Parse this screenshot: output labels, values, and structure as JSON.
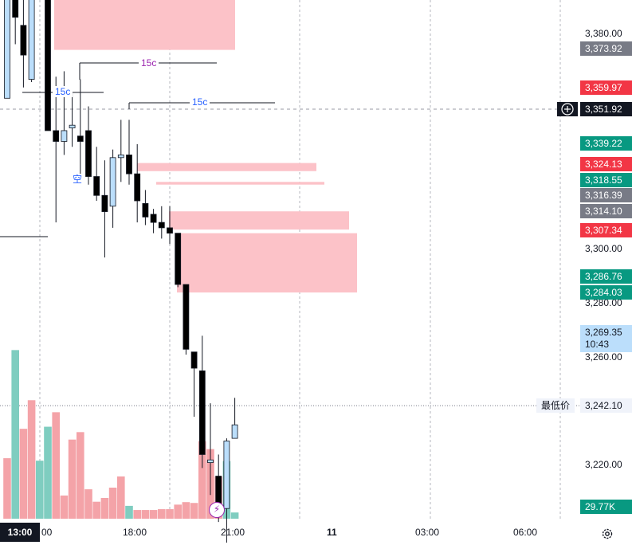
{
  "axis": {
    "ticks": [
      "3,380.00",
      "3,300.00",
      "3,280.00",
      "3,260.00",
      "3,220.00"
    ],
    "time_ticks": [
      "00",
      "18:00",
      "21:00",
      "11",
      "03:00",
      "06:00"
    ],
    "current_time": "13:00"
  },
  "price_labels": [
    {
      "text": "3,373.92",
      "color": "#787b86"
    },
    {
      "text": "3,359.97",
      "color": "#f23645"
    },
    {
      "text": "3,351.92",
      "color": "#131722"
    },
    {
      "text": "3,339.22",
      "color": "#089981"
    },
    {
      "text": "3,324.13",
      "color": "#f23645"
    },
    {
      "text": "3,318.55",
      "color": "#089981"
    },
    {
      "text": "3,316.39",
      "color": "#787b86"
    },
    {
      "text": "3,314.10",
      "color": "#787b86"
    },
    {
      "text": "3,307.34",
      "color": "#f23645"
    },
    {
      "text": "3,286.76",
      "color": "#089981"
    },
    {
      "text": "3,284.03",
      "color": "#089981"
    }
  ],
  "last_price": {
    "value": "3,269.35",
    "countdown": "10:43",
    "bg": "#bbdefb"
  },
  "low": {
    "label": "最低价",
    "value": "3,242.10"
  },
  "volume_label": {
    "text": "29.77K",
    "color": "#089981"
  },
  "annotations": {
    "tf_a": "15c",
    "tf_b": "15c",
    "tf_c": "15c",
    "note": "空"
  },
  "icons": {
    "crosshair": "plus-circle-icon",
    "settings": "gear-icon",
    "flash": "lightning-icon"
  },
  "chart_data": {
    "type": "candlestick",
    "colors": {
      "up_fill": "#bbdefb",
      "down_fill": "#000000",
      "vol_up": "#7fcdc0",
      "vol_down": "#f4a3a8",
      "zone": "#fcc2c8"
    },
    "candles": [
      {
        "o": 3356,
        "h": 3412,
        "l": 3356,
        "c": 3408
      },
      {
        "o": 3408,
        "h": 3417,
        "l": 3376,
        "c": 3386
      },
      {
        "o": 3383,
        "h": 3406,
        "l": 3360,
        "c": 3372
      },
      {
        "o": 3363,
        "h": 3413,
        "l": 3362,
        "c": 3408
      },
      {
        "o": 3413,
        "h": 3415,
        "l": 3404,
        "c": 3412
      },
      {
        "o": 3407,
        "h": 3409,
        "l": 3345,
        "c": 3344
      },
      {
        "o": 3344,
        "h": 3364,
        "l": 3310,
        "c": 3340
      },
      {
        "o": 3340,
        "h": 3366,
        "l": 3335,
        "c": 3344
      },
      {
        "o": 3345,
        "h": 3358,
        "l": 3338,
        "c": 3346
      },
      {
        "o": 3342,
        "h": 3363,
        "l": 3328,
        "c": 3340
      },
      {
        "o": 3344,
        "h": 3353,
        "l": 3324,
        "c": 3327
      },
      {
        "o": 3327,
        "h": 3338,
        "l": 3318,
        "c": 3320
      },
      {
        "o": 3320,
        "h": 3333,
        "l": 3297,
        "c": 3314
      },
      {
        "o": 3316,
        "h": 3337,
        "l": 3308,
        "c": 3334
      },
      {
        "o": 3334,
        "h": 3348,
        "l": 3325,
        "c": 3335
      },
      {
        "o": 3335,
        "h": 3348,
        "l": 3324,
        "c": 3328
      },
      {
        "o": 3328,
        "h": 3339,
        "l": 3310,
        "c": 3318
      },
      {
        "o": 3317,
        "h": 3322,
        "l": 3309,
        "c": 3312
      },
      {
        "o": 3313,
        "h": 3315,
        "l": 3306,
        "c": 3310
      },
      {
        "o": 3310,
        "h": 3316,
        "l": 3304,
        "c": 3308
      },
      {
        "o": 3308,
        "h": 3316,
        "l": 3302,
        "c": 3306
      },
      {
        "o": 3306,
        "h": 3306,
        "l": 3286,
        "c": 3287
      },
      {
        "o": 3287,
        "h": 3287,
        "l": 3261,
        "c": 3263
      },
      {
        "o": 3262,
        "h": 3262,
        "l": 3238,
        "c": 3256
      },
      {
        "o": 3255,
        "h": 3268,
        "l": 3219,
        "c": 3224
      },
      {
        "o": 3221,
        "h": 3243,
        "l": 3209,
        "c": 3222
      },
      {
        "o": 3216,
        "h": 3224,
        "l": 3199,
        "c": 3204
      },
      {
        "o": 3204,
        "h": 3230,
        "l": 3188,
        "c": 3229
      },
      {
        "o": 3230,
        "h": 3245,
        "l": 3230,
        "c": 3235
      }
    ],
    "volumes": [
      {
        "v": 1.46,
        "up": false
      },
      {
        "v": 4.07,
        "up": true
      },
      {
        "v": 2.17,
        "up": false
      },
      {
        "v": 2.86,
        "up": false
      },
      {
        "v": 1.4,
        "up": true
      },
      {
        "v": 2.22,
        "up": true
      },
      {
        "v": 2.57,
        "up": false
      },
      {
        "v": 0.56,
        "up": false
      },
      {
        "v": 1.91,
        "up": false
      },
      {
        "v": 2.09,
        "up": false
      },
      {
        "v": 0.71,
        "up": false
      },
      {
        "v": 0.41,
        "up": false
      },
      {
        "v": 0.5,
        "up": false
      },
      {
        "v": 0.75,
        "up": false
      },
      {
        "v": 1.02,
        "up": false
      },
      {
        "v": 0.31,
        "up": true
      },
      {
        "v": 0.21,
        "up": false
      },
      {
        "v": 0.21,
        "up": false
      },
      {
        "v": 0.21,
        "up": false
      },
      {
        "v": 0.23,
        "up": false
      },
      {
        "v": 0.23,
        "up": false
      },
      {
        "v": 0.34,
        "up": false
      },
      {
        "v": 0.4,
        "up": false
      },
      {
        "v": 0.38,
        "up": false
      },
      {
        "v": 1.87,
        "up": false
      },
      {
        "v": 1.68,
        "up": false
      },
      {
        "v": 1.02,
        "up": false
      },
      {
        "v": 1.39,
        "up": true
      },
      {
        "v": 0.15,
        "up": true
      }
    ],
    "zones": [
      {
        "from": 3373.92,
        "to": 3408
      },
      {
        "from": 3329,
        "to": 3332
      },
      {
        "from": 3324,
        "to": 3325
      },
      {
        "from": 3307.34,
        "to": 3314.1
      },
      {
        "from": 3284.03,
        "to": 3306
      }
    ],
    "low_line": 3242.1
  }
}
